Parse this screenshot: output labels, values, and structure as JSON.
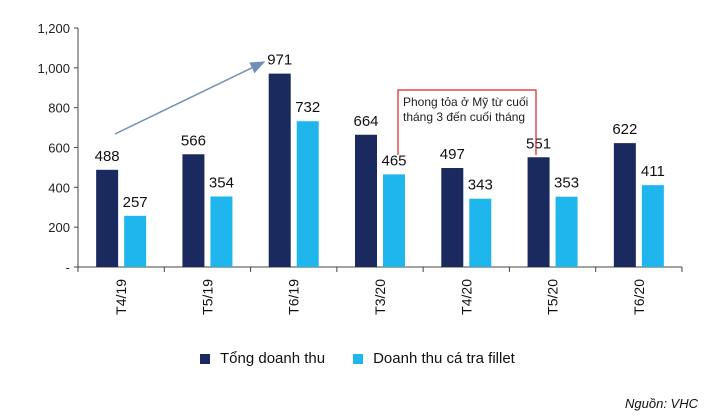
{
  "chart_data": {
    "type": "bar",
    "categories": [
      "T4/19",
      "T5/19",
      "T6/19",
      "T3/20",
      "T4/20",
      "T5/20",
      "T6/20"
    ],
    "series": [
      {
        "name": "Tổng doanh thu",
        "values": [
          488,
          566,
          971,
          664,
          497,
          551,
          622
        ],
        "color": "#1a2a5e"
      },
      {
        "name": "Doanh thu cá tra fillet",
        "values": [
          257,
          354,
          732,
          465,
          343,
          353,
          411
        ],
        "color": "#1fb6ee"
      }
    ],
    "ylim": [
      0,
      1200
    ],
    "yticks": [
      0,
      200,
      400,
      600,
      800,
      1000,
      1200
    ],
    "ytick_labels": [
      "-",
      "200",
      "400",
      "600",
      "800",
      "1,000",
      "1,200"
    ],
    "value_labels": {
      "series0": [
        "488",
        "566",
        "971",
        "664",
        "497",
        "551",
        "622"
      ],
      "series1": [
        "257",
        "354",
        "732",
        "465",
        "343",
        "353",
        "411"
      ]
    },
    "annotation": {
      "line1": "Phong tỏa ở Mỹ từ cuối",
      "line2": "tháng 3 đến cuối tháng"
    },
    "grid": false,
    "legend_position": "bottom"
  },
  "source": "Nguồn: VHC"
}
